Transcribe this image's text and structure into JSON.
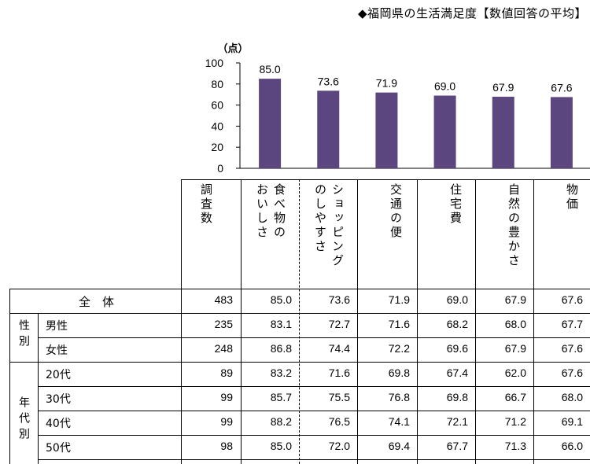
{
  "title": "◆福岡県の生活満足度【数値回答の平均】",
  "chart_data": {
    "type": "bar",
    "title": "◆福岡県の生活満足度【数値回答の平均】",
    "ylabel": "（点）",
    "ylim": [
      0,
      100
    ],
    "yticks": [
      "100",
      "80",
      "60",
      "40",
      "20",
      "0"
    ],
    "bar_color": "#5b4680",
    "categories": [
      "食べ物のおいしさ",
      "ショッピングのしやすさ",
      "交通の便",
      "住宅費",
      "自然の豊かさ",
      "物価"
    ],
    "values": [
      85.0,
      73.6,
      71.9,
      69.0,
      67.9,
      67.6
    ],
    "value_labels": [
      "85.0",
      "73.6",
      "71.9",
      "69.0",
      "67.9",
      "67.6"
    ]
  },
  "table": {
    "count_header": "調査数",
    "col_headers": [
      {
        "line1": "食べ物の",
        "line2": "おいしさ"
      },
      {
        "line1": "ショッピング",
        "line2": "のしやすさ"
      },
      {
        "line1": "交通の便",
        "line2": ""
      },
      {
        "line1": "住宅費",
        "line2": ""
      },
      {
        "line1": "自然の豊かさ",
        "line2": ""
      },
      {
        "line1": "物価",
        "line2": ""
      }
    ],
    "total_label": "全　体",
    "groups": [
      {
        "label": "性別",
        "rows": [
          "男性",
          "女性"
        ]
      },
      {
        "label": "年代別",
        "rows": [
          "20代",
          "30代",
          "40代",
          "50代"
        ]
      }
    ],
    "rows": [
      {
        "label": "全　体",
        "count": "483",
        "values": [
          "85.0",
          "73.6",
          "71.9",
          "69.0",
          "67.9",
          "67.6"
        ]
      },
      {
        "label": "男性",
        "count": "235",
        "values": [
          "83.1",
          "72.7",
          "71.6",
          "68.2",
          "68.0",
          "67.7"
        ]
      },
      {
        "label": "女性",
        "count": "248",
        "values": [
          "86.8",
          "74.4",
          "72.2",
          "69.6",
          "67.9",
          "67.6"
        ]
      },
      {
        "label": "20代",
        "count": "89",
        "values": [
          "83.2",
          "71.6",
          "69.8",
          "67.4",
          "62.0",
          "67.6"
        ]
      },
      {
        "label": "30代",
        "count": "99",
        "values": [
          "85.7",
          "75.5",
          "76.8",
          "69.8",
          "66.7",
          "68.0"
        ]
      },
      {
        "label": "40代",
        "count": "99",
        "values": [
          "88.2",
          "76.5",
          "74.1",
          "72.1",
          "71.2",
          "69.1"
        ]
      },
      {
        "label": "50代",
        "count": "98",
        "values": [
          "85.0",
          "72.0",
          "69.4",
          "67.7",
          "71.3",
          "66.0"
        ]
      }
    ]
  }
}
